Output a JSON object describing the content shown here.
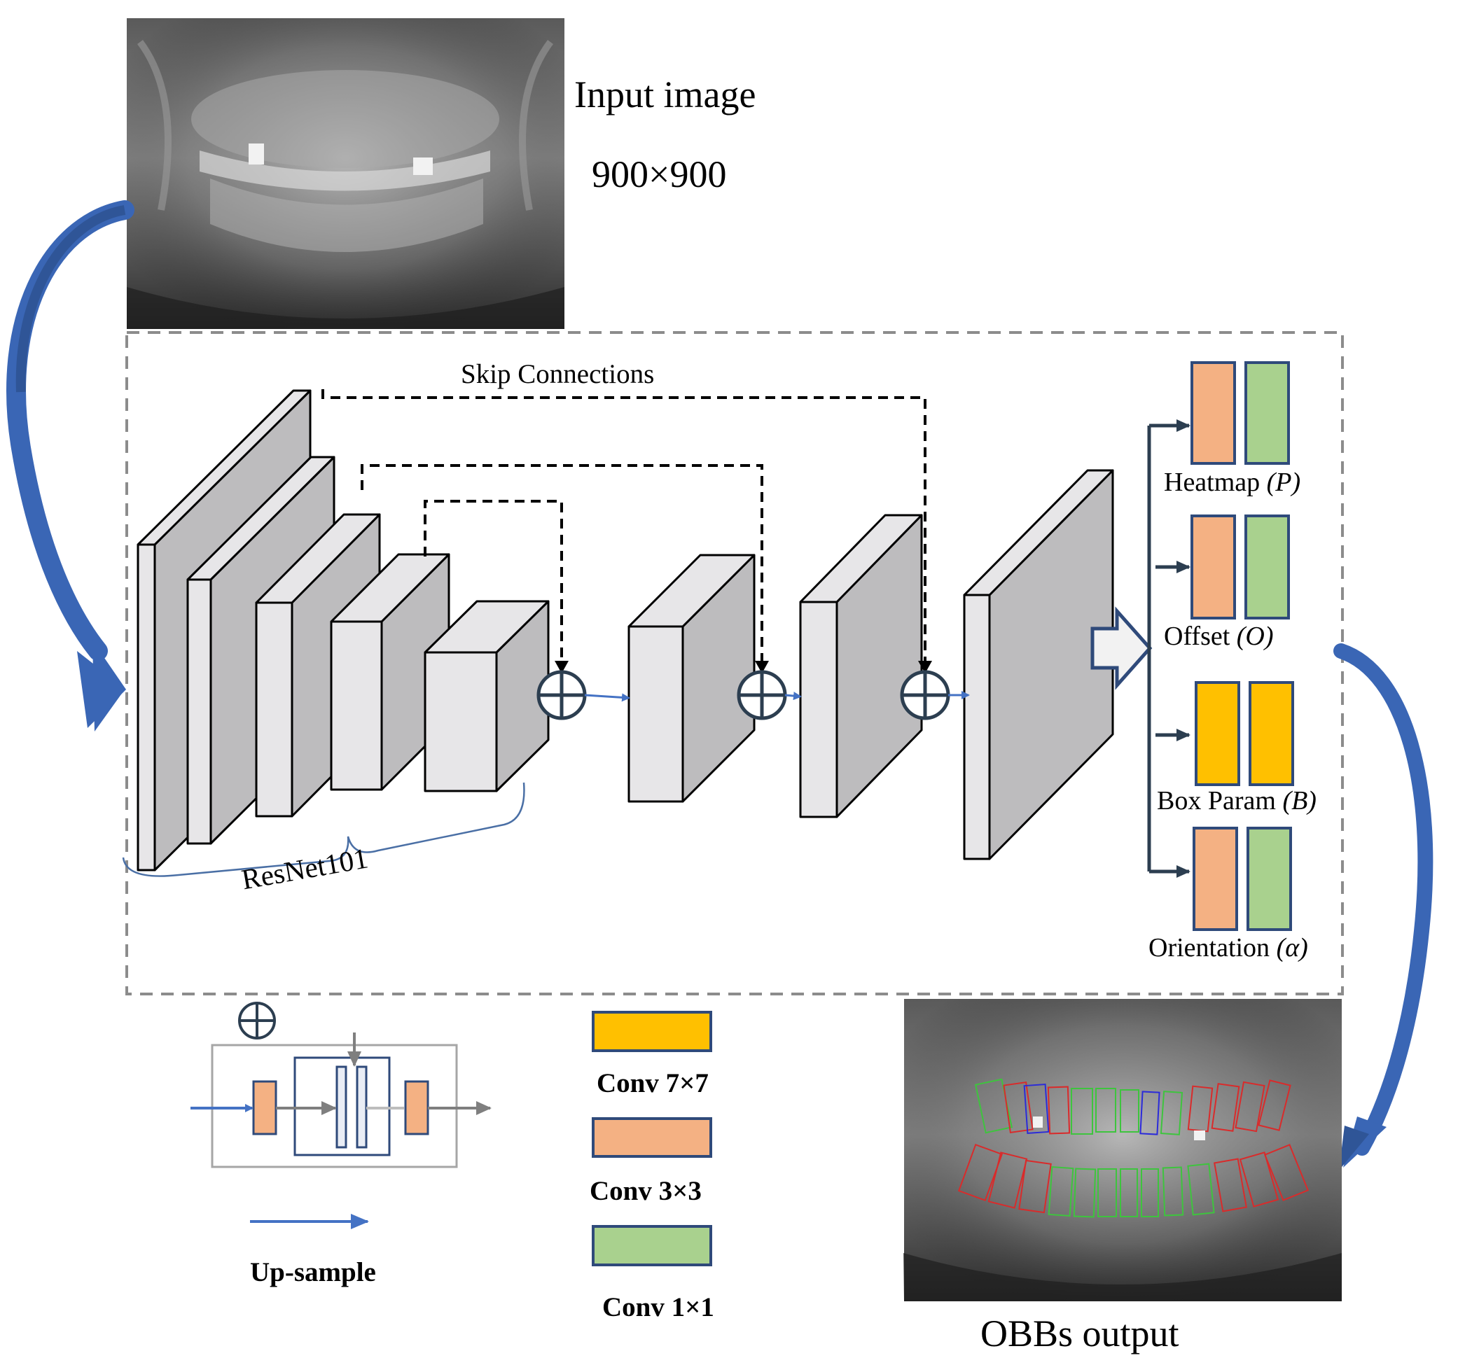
{
  "input": {
    "title": "Input image",
    "size": "900×900"
  },
  "network": {
    "skip_label": "Skip Connections",
    "backbone_label": "ResNet101"
  },
  "heads": [
    {
      "name": "Heatmap",
      "symbol": "(P)",
      "colors": [
        "#f4b183",
        "#a9d18e"
      ]
    },
    {
      "name": "Offset",
      "symbol": "(O)",
      "colors": [
        "#f4b183",
        "#a9d18e"
      ]
    },
    {
      "name": "Box Param",
      "symbol": "(B)",
      "colors": [
        "#ffc000",
        "#ffc000"
      ]
    },
    {
      "name": "Orientation",
      "symbol": "(α)",
      "colors": [
        "#f4b183",
        "#a9d18e"
      ]
    }
  ],
  "legend": {
    "conv7": "Conv 7×7",
    "conv3": "Conv 3×3",
    "conv1": "Conv 1×1",
    "upsample": "Up-sample",
    "plus_symbol": "⊕"
  },
  "output": {
    "title": "OBBs output"
  },
  "colors": {
    "arrow_blue": "#4472c4",
    "big_arrow": "#2f5597",
    "layer_front": "#e7e6e8",
    "layer_side": "#bdbcbe",
    "conv7": "#ffc000",
    "conv3": "#f4b183",
    "conv1": "#a9d18e",
    "head_border": "#2f4a7a"
  }
}
